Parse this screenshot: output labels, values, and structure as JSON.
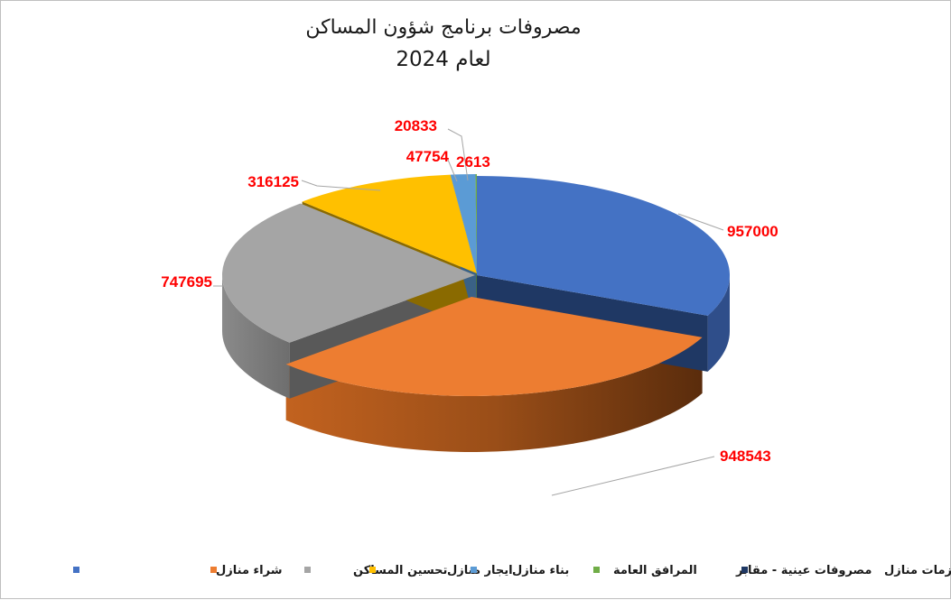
{
  "chart_data": {
    "type": "pie",
    "title": "مصروفات برنامج شؤون المساكن",
    "subtitle": "لعام 2024",
    "labels": [
      "شراء منازل",
      "مستلزمات منازل",
      "تحسين المساكن",
      "ايجار منازل",
      "بناء منازل",
      "المرافق العامة",
      "مصروفات عينية - مقابر"
    ],
    "values": [
      957000,
      0,
      948543,
      747695,
      316125,
      47754,
      2613
    ],
    "data_labels": [
      "957000",
      "",
      "948543",
      "747695",
      "316125",
      "47754",
      "2613"
    ],
    "extra_label": "20833",
    "colors": [
      "#4472C4",
      "#1F3864",
      "#ED7D31",
      "#A5A5A5",
      "#FFC000",
      "#5B9BD5",
      "#70AD47"
    ],
    "label_color": "#FF0000",
    "legend": {
      "position": "bottom",
      "items": [
        {
          "label": "شراء منازل",
          "color": "#4472C4"
        },
        {
          "label": "تحسين المساكن",
          "color": "#ED7D31"
        },
        {
          "label": "ايجار منازل",
          "color": "#A5A5A5"
        },
        {
          "label": "بناء منازل",
          "color": "#FFC000"
        },
        {
          "label": "المرافق العامة",
          "color": "#5B9BD5"
        },
        {
          "label": "مصروفات عينية - مقابر",
          "color": "#70AD47"
        },
        {
          "label": "مستلزمات منازل",
          "color": "#1F3864"
        }
      ]
    },
    "style": "3d-exploded"
  }
}
